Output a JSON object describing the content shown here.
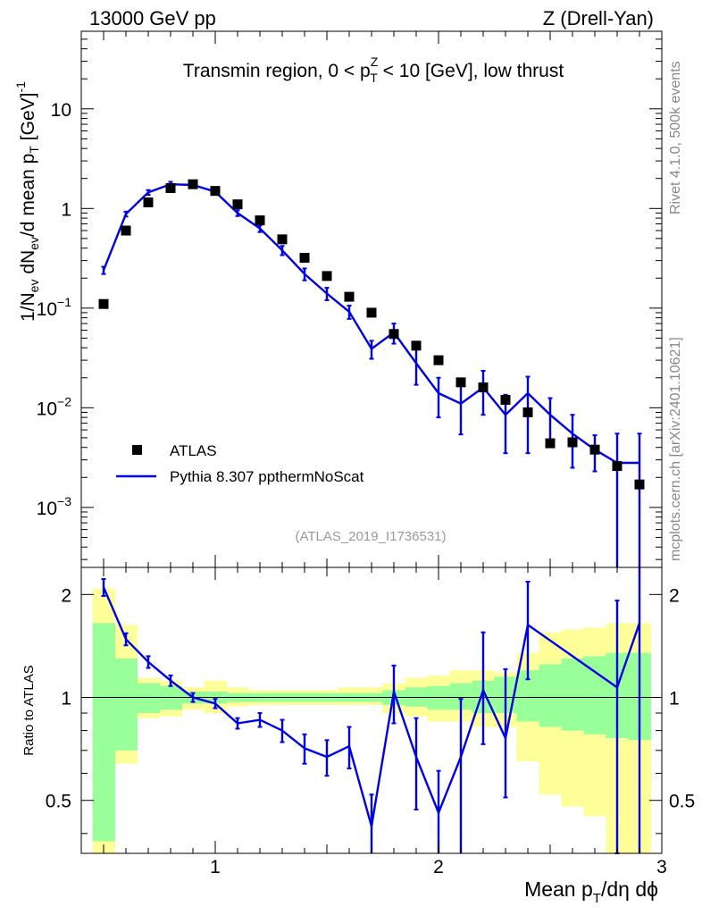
{
  "header": {
    "left": "13000 GeV pp",
    "right": "Z (Drell-Yan)"
  },
  "side_labels": {
    "rivet": "Rivet 4.1.0,  500k events",
    "source": "mcplots.cern.ch [arXiv:2401.10621]"
  },
  "colors": {
    "mc_line": "#0000e6",
    "data_marker": "#000000",
    "band_inner": "#99ff99",
    "band_outer": "#ffff99"
  },
  "chart_data": [
    {
      "type": "scatter",
      "panel": "main",
      "title": "Transmin region, 0 < p_T^Z < 10 [GeV], low thrust",
      "title_parts": {
        "pre": "Transmin region, 0 < p",
        "sup": "Z",
        "sub": "T",
        "post": " < 10 [GeV], low thrust"
      },
      "watermark": "(ATLAS_2019_I1736531)",
      "ylabel": "1/N_ev dN_ev/d mean p_T [GeV]^-1",
      "ylabel_parts": {
        "t1": "1/N",
        "s1": "ev",
        "t2": " dN",
        "s2": "ev",
        "t3": "/d mean p",
        "s3": "T",
        "t4": " [GeV]",
        "sup": "-1"
      },
      "yscale": "log",
      "ylim": [
        0.00025,
        60
      ],
      "xlim": [
        0.4,
        3.0
      ],
      "y_tick_labels": [
        {
          "value": 0.001,
          "base": "10",
          "exp": "−3"
        },
        {
          "value": 0.01,
          "base": "10",
          "exp": "−2"
        },
        {
          "value": 0.1,
          "base": "10",
          "exp": "−1"
        },
        {
          "value": 1,
          "base": "1",
          "exp": ""
        },
        {
          "value": 10,
          "base": "10",
          "exp": ""
        }
      ],
      "legend": [
        {
          "label": "ATLAS",
          "kind": "marker"
        },
        {
          "label": "Pythia 8.307 ppthermNoScat",
          "kind": "line"
        }
      ],
      "legend_position": "lower-left",
      "series": [
        {
          "name": "ATLAS",
          "x": [
            0.5,
            0.6,
            0.7,
            0.8,
            0.9,
            1.0,
            1.1,
            1.2,
            1.3,
            1.4,
            1.5,
            1.6,
            1.7,
            1.8,
            1.9,
            2.0,
            2.1,
            2.2,
            2.3,
            2.4,
            2.5,
            2.6,
            2.7,
            2.8,
            2.9
          ],
          "y": [
            0.11,
            0.6,
            1.15,
            1.6,
            1.75,
            1.5,
            1.1,
            0.76,
            0.49,
            0.32,
            0.21,
            0.13,
            0.09,
            0.055,
            0.042,
            0.03,
            0.018,
            0.016,
            0.012,
            0.009,
            0.0044,
            0.0045,
            0.0038,
            0.0026,
            0.0017
          ]
        },
        {
          "name": "Pythia 8.307 ppthermNoScat",
          "x": [
            0.5,
            0.6,
            0.7,
            0.8,
            0.9,
            1.0,
            1.1,
            1.2,
            1.3,
            1.4,
            1.5,
            1.6,
            1.7,
            1.8,
            1.9,
            2.0,
            2.1,
            2.2,
            2.3,
            2.4,
            2.5,
            2.6,
            2.7,
            2.8,
            2.9
          ],
          "y": [
            0.24,
            0.88,
            1.45,
            1.75,
            1.72,
            1.47,
            0.9,
            0.63,
            0.38,
            0.22,
            0.14,
            0.092,
            0.039,
            0.057,
            0.028,
            0.014,
            0.011,
            0.016,
            0.0085,
            0.014,
            0.0085,
            0.0055,
            0.0038,
            0.0028,
            0.0028
          ],
          "err_low": [
            0.02,
            0.05,
            0.08,
            0.1,
            0.1,
            0.08,
            0.06,
            0.05,
            0.04,
            0.03,
            0.02,
            0.014,
            0.008,
            0.013,
            0.011,
            0.006,
            0.0056,
            0.0075,
            0.005,
            0.0105,
            0.004,
            0.003,
            0.0015,
            0.0026,
            0.0026
          ],
          "err_high": [
            0.02,
            0.05,
            0.08,
            0.1,
            0.1,
            0.08,
            0.06,
            0.05,
            0.04,
            0.03,
            0.02,
            0.014,
            0.008,
            0.013,
            0.011,
            0.006,
            0.0056,
            0.0075,
            0.005,
            0.0065,
            0.004,
            0.003,
            0.0015,
            0.0027,
            0.0027
          ]
        }
      ]
    },
    {
      "type": "line",
      "panel": "ratio",
      "ylabel": "Ratio to ATLAS",
      "xlabel": "Mean p_T/dη dϕ",
      "xlabel_parts": {
        "pre": "Mean p",
        "sub": "T",
        "post": "/dη dϕ"
      },
      "yscale": "log",
      "ylim": [
        0.35,
        2.4
      ],
      "xlim": [
        0.4,
        3.0
      ],
      "x_tick_labels": [
        {
          "value": 1,
          "label": "1"
        },
        {
          "value": 2,
          "label": "2"
        },
        {
          "value": 3,
          "label": "3"
        }
      ],
      "y_tick_labels": [
        {
          "value": 0.5,
          "label": "0.5"
        },
        {
          "value": 1,
          "label": "1"
        },
        {
          "value": 2,
          "label": "2"
        }
      ],
      "bin_edges": [
        0.45,
        0.55,
        0.65,
        0.75,
        0.85,
        0.95,
        1.05,
        1.15,
        1.25,
        1.35,
        1.45,
        1.55,
        1.65,
        1.75,
        1.85,
        1.95,
        2.05,
        2.15,
        2.25,
        2.35,
        2.45,
        2.55,
        2.65,
        2.75,
        2.85,
        2.95
      ],
      "band_inner": {
        "low": [
          0.38,
          0.7,
          0.9,
          0.92,
          0.96,
          0.96,
          0.97,
          0.97,
          0.97,
          0.97,
          0.97,
          0.97,
          0.97,
          0.95,
          0.94,
          0.92,
          0.92,
          0.9,
          0.9,
          0.85,
          0.82,
          0.8,
          0.78,
          0.76,
          0.75
        ],
        "high": [
          1.65,
          1.3,
          1.1,
          1.08,
          1.04,
          1.04,
          1.03,
          1.03,
          1.03,
          1.03,
          1.03,
          1.03,
          1.03,
          1.05,
          1.07,
          1.08,
          1.1,
          1.12,
          1.15,
          1.2,
          1.25,
          1.3,
          1.32,
          1.35,
          1.35
        ]
      },
      "band_outer": {
        "low": [
          0.35,
          0.64,
          0.87,
          0.88,
          0.92,
          0.9,
          0.94,
          0.95,
          0.95,
          0.95,
          0.95,
          0.95,
          0.95,
          0.9,
          0.88,
          0.85,
          0.85,
          0.82,
          0.82,
          0.65,
          0.52,
          0.48,
          0.45,
          0.35,
          0.35
        ],
        "high": [
          2.08,
          1.63,
          1.14,
          1.12,
          1.07,
          1.12,
          1.07,
          1.05,
          1.05,
          1.05,
          1.05,
          1.07,
          1.07,
          1.1,
          1.14,
          1.16,
          1.2,
          1.2,
          1.18,
          1.35,
          1.55,
          1.58,
          1.6,
          1.65,
          1.65
        ]
      },
      "series": [
        {
          "name": "Pythia 8.307 ppthermNoScat / ATLAS",
          "x": [
            0.5,
            0.6,
            0.7,
            0.8,
            0.9,
            1.0,
            1.1,
            1.2,
            1.3,
            1.4,
            1.5,
            1.6,
            1.7,
            1.8,
            1.9,
            2.0,
            2.1,
            2.2,
            2.3,
            2.4,
            2.8,
            2.9
          ],
          "y": [
            2.1,
            1.48,
            1.27,
            1.12,
            1.0,
            0.96,
            0.84,
            0.86,
            0.8,
            0.71,
            0.67,
            0.72,
            0.42,
            1.04,
            0.67,
            0.46,
            0.67,
            1.05,
            0.76,
            1.63,
            1.07,
            1.65
          ],
          "err_low": [
            0.12,
            0.06,
            0.05,
            0.04,
            0.03,
            0.03,
            0.03,
            0.04,
            0.06,
            0.07,
            0.08,
            0.1,
            0.08,
            0.2,
            0.2,
            0.15,
            0.32,
            0.32,
            0.25,
            0.5,
            0.72,
            1.3
          ],
          "err_high": [
            0.12,
            0.06,
            0.05,
            0.04,
            0.03,
            0.03,
            0.03,
            0.04,
            0.06,
            0.07,
            0.08,
            0.1,
            0.1,
            0.2,
            0.2,
            0.15,
            0.32,
            0.5,
            0.45,
            0.55,
            0.85,
            1.3
          ]
        }
      ]
    }
  ]
}
